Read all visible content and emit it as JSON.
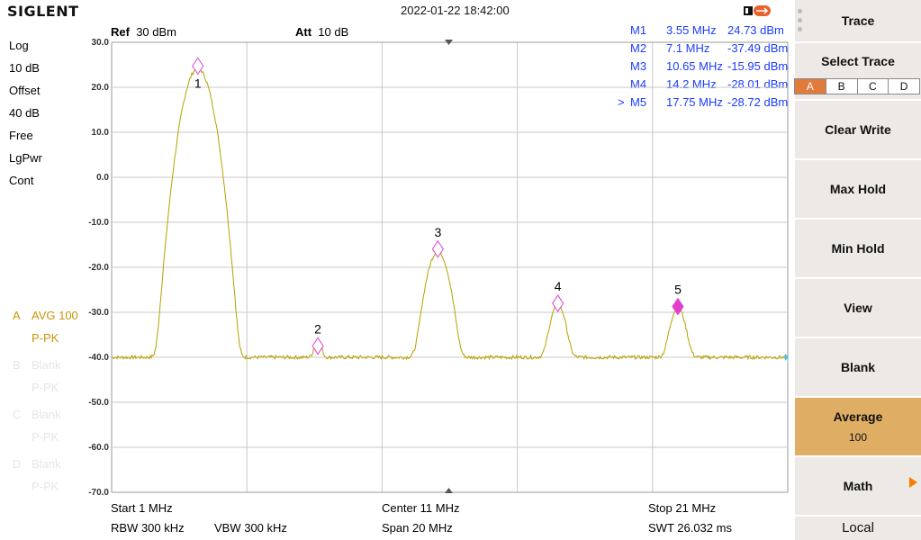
{
  "header": {
    "brand": "SIGLENT",
    "datetime": "2022-01-22 18:42:00",
    "ref_label": "Ref",
    "ref_value": "30 dBm",
    "att_label": "Att",
    "att_value": "10 dB"
  },
  "left_panel": {
    "scale_type": "Log",
    "scale_div": "10 dB",
    "offset_label": "Offset",
    "offset_value": "40 dB",
    "trigger": "Free",
    "detector": "LgPwr",
    "sweep_mode": "Cont",
    "traces": [
      {
        "letter": "A",
        "mode": "AVG 100",
        "det": "P-PK"
      },
      {
        "letter": "B",
        "mode": "Blank",
        "det": "P-PK"
      },
      {
        "letter": "C",
        "mode": "Blank",
        "det": "P-PK"
      },
      {
        "letter": "D",
        "mode": "Blank",
        "det": "P-PK"
      }
    ]
  },
  "markers": [
    {
      "id": "M1",
      "freq": "3.55 MHz",
      "amp": "24.73 dBm",
      "label": "1",
      "active": false
    },
    {
      "id": "M2",
      "freq": "7.1 MHz",
      "amp": "-37.49 dBm",
      "label": "2",
      "active": false
    },
    {
      "id": "M3",
      "freq": "10.65 MHz",
      "amp": "-15.95 dBm",
      "label": "3",
      "active": false
    },
    {
      "id": "M4",
      "freq": "14.2 MHz",
      "amp": "-28.01 dBm",
      "label": "4",
      "active": false
    },
    {
      "id": "M5",
      "freq": "17.75 MHz",
      "amp": "-28.72 dBm",
      "label": "5",
      "active": true
    }
  ],
  "active_marker_indicator": ">",
  "y_ticks": [
    "30.0",
    "20.0",
    "10.0",
    "0.0",
    "-10.0",
    "-20.0",
    "-30.0",
    "-40.0",
    "-50.0",
    "-60.0",
    "-70.0"
  ],
  "footer": {
    "start": "Start  1 MHz",
    "center": "Center  11 MHz",
    "stop": "Stop  21 MHz",
    "rbw": "RBW  300 kHz",
    "vbw": "VBW  300 kHz",
    "span": "Span  20 MHz",
    "swt": "SWT  26.032 ms"
  },
  "menu": {
    "title": "Trace",
    "select_trace": "Select Trace",
    "trace_options": [
      "A",
      "B",
      "C",
      "D"
    ],
    "selected_trace": "A",
    "clear_write": "Clear Write",
    "max_hold": "Max Hold",
    "min_hold": "Min Hold",
    "view": "View",
    "blank": "Blank",
    "average": "Average",
    "average_value": "100",
    "math": "Math",
    "local": "Local"
  },
  "chart_data": {
    "type": "line",
    "x_unit": "MHz",
    "y_unit": "dBm",
    "xlim": [
      1,
      21
    ],
    "ylim": [
      -70,
      30
    ],
    "noise_floor": -40,
    "peaks": [
      {
        "freq": 3.55,
        "amp": 24.73
      },
      {
        "freq": 7.1,
        "amp": -37.49
      },
      {
        "freq": 10.65,
        "amp": -15.95
      },
      {
        "freq": 14.2,
        "amp": -28.01
      },
      {
        "freq": 17.75,
        "amp": -28.72
      }
    ],
    "grid": true,
    "colors": {
      "trace": "#b8a000",
      "marker": "#e040d0",
      "grid": "#c8c8c8"
    }
  },
  "colors": {
    "accent_gold": "#c8960a",
    "marker_text": "#1a3cff",
    "menu_active": "#dfae64",
    "trace_sel": "#e07b3c"
  }
}
